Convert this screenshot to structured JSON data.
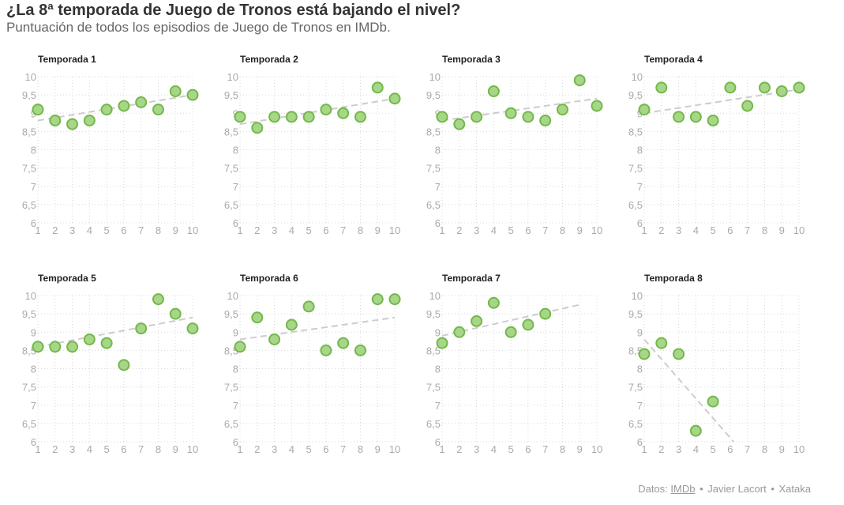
{
  "header": {
    "title": "¿La 8ª temporada de Juego de Tronos está bajando el nivel?",
    "subtitle": "Puntuación de todos los episodios de Juego de Tronos en IMDb."
  },
  "footer": {
    "prefix": "Datos:",
    "source_link": "IMDb",
    "sep1": "•",
    "author": "Javier Lacort",
    "sep2": "•",
    "publisher": "Xataka"
  },
  "colors": {
    "point_fill": "#a8d688",
    "point_stroke": "#72b84a",
    "trend": "#cccccc",
    "grid": "#d8d8d8",
    "tick_label": "#aaaaaa",
    "panel_title": "#222222"
  },
  "chart_data": [
    {
      "type": "scatter",
      "title": "Temporada 1",
      "xlabel": "",
      "ylabel": "",
      "xlim": [
        1,
        10
      ],
      "ylim": [
        6,
        10
      ],
      "x": [
        1,
        2,
        3,
        4,
        5,
        6,
        7,
        8,
        9,
        10
      ],
      "y": [
        9.1,
        8.8,
        8.7,
        8.8,
        9.1,
        9.2,
        9.3,
        9.1,
        9.6,
        9.5
      ],
      "trend": [
        8.8,
        9.5
      ],
      "xticks": [
        "1",
        "2",
        "3",
        "4",
        "5",
        "6",
        "7",
        "8",
        "9",
        "10"
      ],
      "yticks": [
        "6",
        "6,5",
        "7",
        "7,5",
        "8",
        "8,5",
        "9",
        "9,5",
        "10"
      ]
    },
    {
      "type": "scatter",
      "title": "Temporada 2",
      "xlabel": "",
      "ylabel": "",
      "xlim": [
        1,
        10
      ],
      "ylim": [
        6,
        10
      ],
      "x": [
        1,
        2,
        3,
        4,
        5,
        6,
        7,
        8,
        9,
        10
      ],
      "y": [
        8.9,
        8.6,
        8.9,
        8.9,
        8.9,
        9.1,
        9.0,
        8.9,
        9.7,
        9.4
      ],
      "trend": [
        8.7,
        9.4
      ],
      "xticks": [
        "1",
        "2",
        "3",
        "4",
        "5",
        "6",
        "7",
        "8",
        "9",
        "10"
      ],
      "yticks": [
        "6",
        "6,5",
        "7",
        "7,5",
        "8",
        "8,5",
        "9",
        "9,5",
        "10"
      ]
    },
    {
      "type": "scatter",
      "title": "Temporada 3",
      "xlabel": "",
      "ylabel": "",
      "xlim": [
        1,
        10
      ],
      "ylim": [
        6,
        10
      ],
      "x": [
        1,
        2,
        3,
        4,
        5,
        6,
        7,
        8,
        9,
        10
      ],
      "y": [
        8.9,
        8.7,
        8.9,
        9.6,
        9.0,
        8.9,
        8.8,
        9.1,
        9.9,
        9.2
      ],
      "trend": [
        8.8,
        9.4
      ],
      "xticks": [
        "1",
        "2",
        "3",
        "4",
        "5",
        "6",
        "7",
        "8",
        "9",
        "10"
      ],
      "yticks": [
        "6",
        "6,5",
        "7",
        "7,5",
        "8",
        "8,5",
        "9",
        "9,5",
        "10"
      ]
    },
    {
      "type": "scatter",
      "title": "Temporada 4",
      "xlabel": "",
      "ylabel": "",
      "xlim": [
        1,
        10
      ],
      "ylim": [
        6,
        10
      ],
      "x": [
        1,
        2,
        3,
        4,
        5,
        6,
        7,
        8,
        9,
        10
      ],
      "y": [
        9.1,
        9.7,
        8.9,
        8.9,
        8.8,
        9.7,
        9.2,
        9.7,
        9.6,
        9.7
      ],
      "trend": [
        9.0,
        9.65
      ],
      "xticks": [
        "1",
        "2",
        "3",
        "4",
        "5",
        "6",
        "7",
        "8",
        "9",
        "10"
      ],
      "yticks": [
        "6",
        "6,5",
        "7",
        "7,5",
        "8",
        "8,5",
        "9",
        "9,5",
        "10"
      ]
    },
    {
      "type": "scatter",
      "title": "Temporada 5",
      "xlabel": "",
      "ylabel": "",
      "xlim": [
        1,
        10
      ],
      "ylim": [
        6,
        10
      ],
      "x": [
        1,
        2,
        3,
        4,
        5,
        6,
        7,
        8,
        9,
        10
      ],
      "y": [
        8.6,
        8.6,
        8.6,
        8.8,
        8.7,
        8.1,
        9.1,
        9.9,
        9.5,
        9.1
      ],
      "trend": [
        8.6,
        9.4
      ],
      "xticks": [
        "1",
        "2",
        "3",
        "4",
        "5",
        "6",
        "7",
        "8",
        "9",
        "10"
      ],
      "yticks": [
        "6",
        "6,5",
        "7",
        "7,5",
        "8",
        "8,5",
        "9",
        "9,5",
        "10"
      ]
    },
    {
      "type": "scatter",
      "title": "Temporada 6",
      "xlabel": "",
      "ylabel": "",
      "xlim": [
        1,
        10
      ],
      "ylim": [
        6,
        10
      ],
      "x": [
        1,
        2,
        3,
        4,
        5,
        6,
        7,
        8,
        9,
        10
      ],
      "y": [
        8.6,
        9.4,
        8.8,
        9.2,
        9.7,
        8.5,
        8.7,
        8.5,
        9.9,
        9.9
      ],
      "trend": [
        8.8,
        9.4
      ],
      "xticks": [
        "1",
        "2",
        "3",
        "4",
        "5",
        "6",
        "7",
        "8",
        "9",
        "10"
      ],
      "yticks": [
        "6",
        "6,5",
        "7",
        "7,5",
        "8",
        "8,5",
        "9",
        "9,5",
        "10"
      ]
    },
    {
      "type": "scatter",
      "title": "Temporada 7",
      "xlabel": "",
      "ylabel": "",
      "xlim": [
        1,
        10
      ],
      "ylim": [
        6,
        10
      ],
      "x": [
        1,
        2,
        3,
        4,
        5,
        6,
        7
      ],
      "y": [
        8.7,
        9.0,
        9.3,
        9.8,
        9.0,
        9.2,
        9.5
      ],
      "trend_x": [
        1,
        9
      ],
      "trend": [
        8.9,
        9.75
      ],
      "xticks": [
        "1",
        "2",
        "3",
        "4",
        "5",
        "6",
        "7",
        "8",
        "9",
        "10"
      ],
      "yticks": [
        "6",
        "6,5",
        "7",
        "7,5",
        "8",
        "8,5",
        "9",
        "9,5",
        "10"
      ]
    },
    {
      "type": "scatter",
      "title": "Temporada 8",
      "xlabel": "",
      "ylabel": "",
      "xlim": [
        1,
        10
      ],
      "ylim": [
        6,
        10
      ],
      "x": [
        1,
        2,
        3,
        4,
        5
      ],
      "y": [
        8.4,
        8.7,
        8.4,
        6.3,
        7.1
      ],
      "trend_x": [
        1,
        6.2
      ],
      "trend": [
        8.8,
        6.0
      ],
      "xticks": [
        "1",
        "2",
        "3",
        "4",
        "5",
        "6",
        "7",
        "8",
        "9",
        "10"
      ],
      "yticks": [
        "6",
        "6,5",
        "7",
        "7,5",
        "8",
        "8,5",
        "9",
        "9,5",
        "10"
      ]
    }
  ]
}
